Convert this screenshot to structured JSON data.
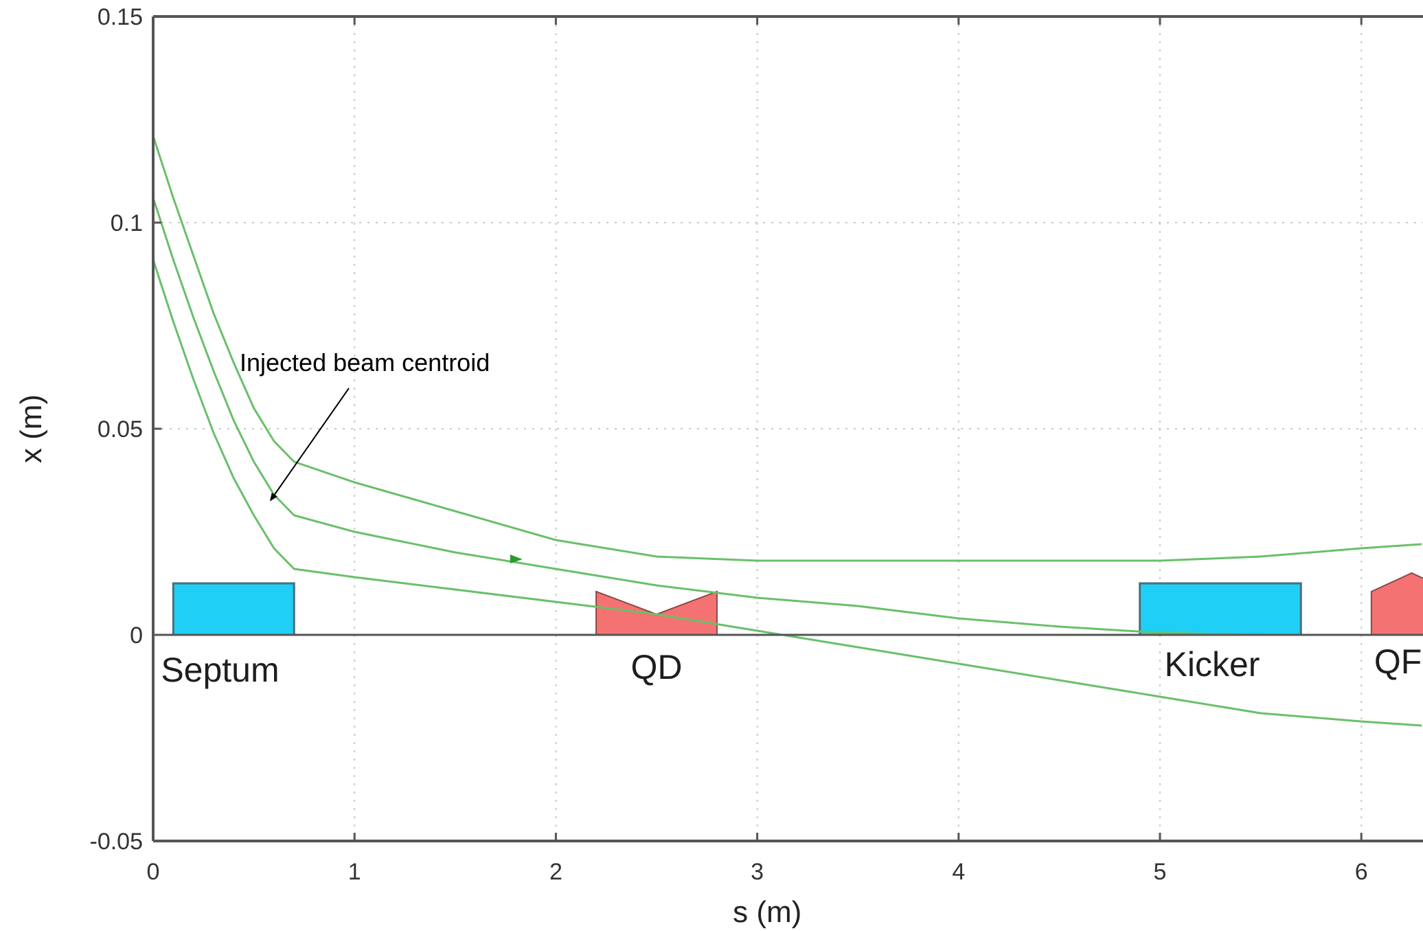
{
  "chart_data": {
    "type": "line",
    "title": "",
    "xlabel": "s (m)",
    "ylabel": "x (m)",
    "xlim": [
      0,
      6.3
    ],
    "ylim": [
      -0.05,
      0.15
    ],
    "xticks": [
      0,
      1,
      2,
      3,
      4,
      5,
      6
    ],
    "xtick_labels": [
      "0",
      "1",
      "2",
      "3",
      "4",
      "5",
      "6"
    ],
    "yticks": [
      -0.05,
      0,
      0.05,
      0.1,
      0.15
    ],
    "ytick_labels": [
      "-0.05",
      "0",
      "0.05",
      "0.1",
      "0.15"
    ],
    "grid": true,
    "series": [
      {
        "color": "#6abf6a",
        "x": [
          0,
          0.1,
          0.2,
          0.3,
          0.4,
          0.5,
          0.6,
          0.7,
          1.0,
          1.5,
          2.0,
          2.5,
          3.0,
          3.5,
          4.0,
          4.5,
          5.0,
          5.5,
          6.0,
          6.3
        ],
        "y": [
          0.121,
          0.106,
          0.092,
          0.078,
          0.066,
          0.055,
          0.047,
          0.042,
          0.037,
          0.03,
          0.023,
          0.019,
          0.018,
          0.018,
          0.018,
          0.018,
          0.018,
          0.019,
          0.021,
          0.022
        ]
      },
      {
        "color": "#6abf6a",
        "x": [
          0,
          0.1,
          0.2,
          0.3,
          0.4,
          0.5,
          0.6,
          0.7,
          1.0,
          1.5,
          2.0,
          2.5,
          3.0,
          3.5,
          4.0,
          4.5,
          5.0,
          5.5,
          6.0,
          6.3
        ],
        "y": [
          0.106,
          0.091,
          0.077,
          0.064,
          0.052,
          0.042,
          0.034,
          0.029,
          0.025,
          0.02,
          0.016,
          0.012,
          0.009,
          0.007,
          0.004,
          0.002,
          0.0005,
          0.0,
          0.0,
          0.0
        ]
      },
      {
        "color": "#6abf6a",
        "x": [
          0,
          0.1,
          0.2,
          0.3,
          0.4,
          0.5,
          0.6,
          0.7,
          1.0,
          1.5,
          2.0,
          2.5,
          3.0,
          3.5,
          4.0,
          4.5,
          5.0,
          5.5,
          6.0,
          6.3
        ],
        "y": [
          0.091,
          0.076,
          0.062,
          0.049,
          0.038,
          0.029,
          0.021,
          0.016,
          0.014,
          0.011,
          0.008,
          0.005,
          0.001,
          -0.003,
          -0.007,
          -0.011,
          -0.015,
          -0.019,
          -0.021,
          -0.022
        ]
      }
    ],
    "direction_marker": {
      "x": 1.8,
      "y": 0.0185
    },
    "elements": [
      {
        "label": "Septum",
        "kind": "rect",
        "s_start": 0.1,
        "s_end": 0.7,
        "height": 0.0125,
        "color": "#1fcff5"
      },
      {
        "label": "QD",
        "kind": "defocusing-quad",
        "s_start": 2.2,
        "s_end": 2.8,
        "height": 0.0105,
        "notch": 0.005,
        "color": "#f57272"
      },
      {
        "label": "Kicker",
        "kind": "rect",
        "s_start": 4.9,
        "s_end": 5.7,
        "height": 0.0125,
        "color": "#1fcff5"
      },
      {
        "label": "QF",
        "kind": "focusing-quad",
        "s_start": 6.05,
        "s_end": 6.45,
        "height": 0.0105,
        "peak": 0.015,
        "color": "#f57272"
      }
    ],
    "annotation": {
      "text": "Injected beam centroid",
      "arrow_x": 0.57,
      "arrow_y": 0.032
    }
  }
}
